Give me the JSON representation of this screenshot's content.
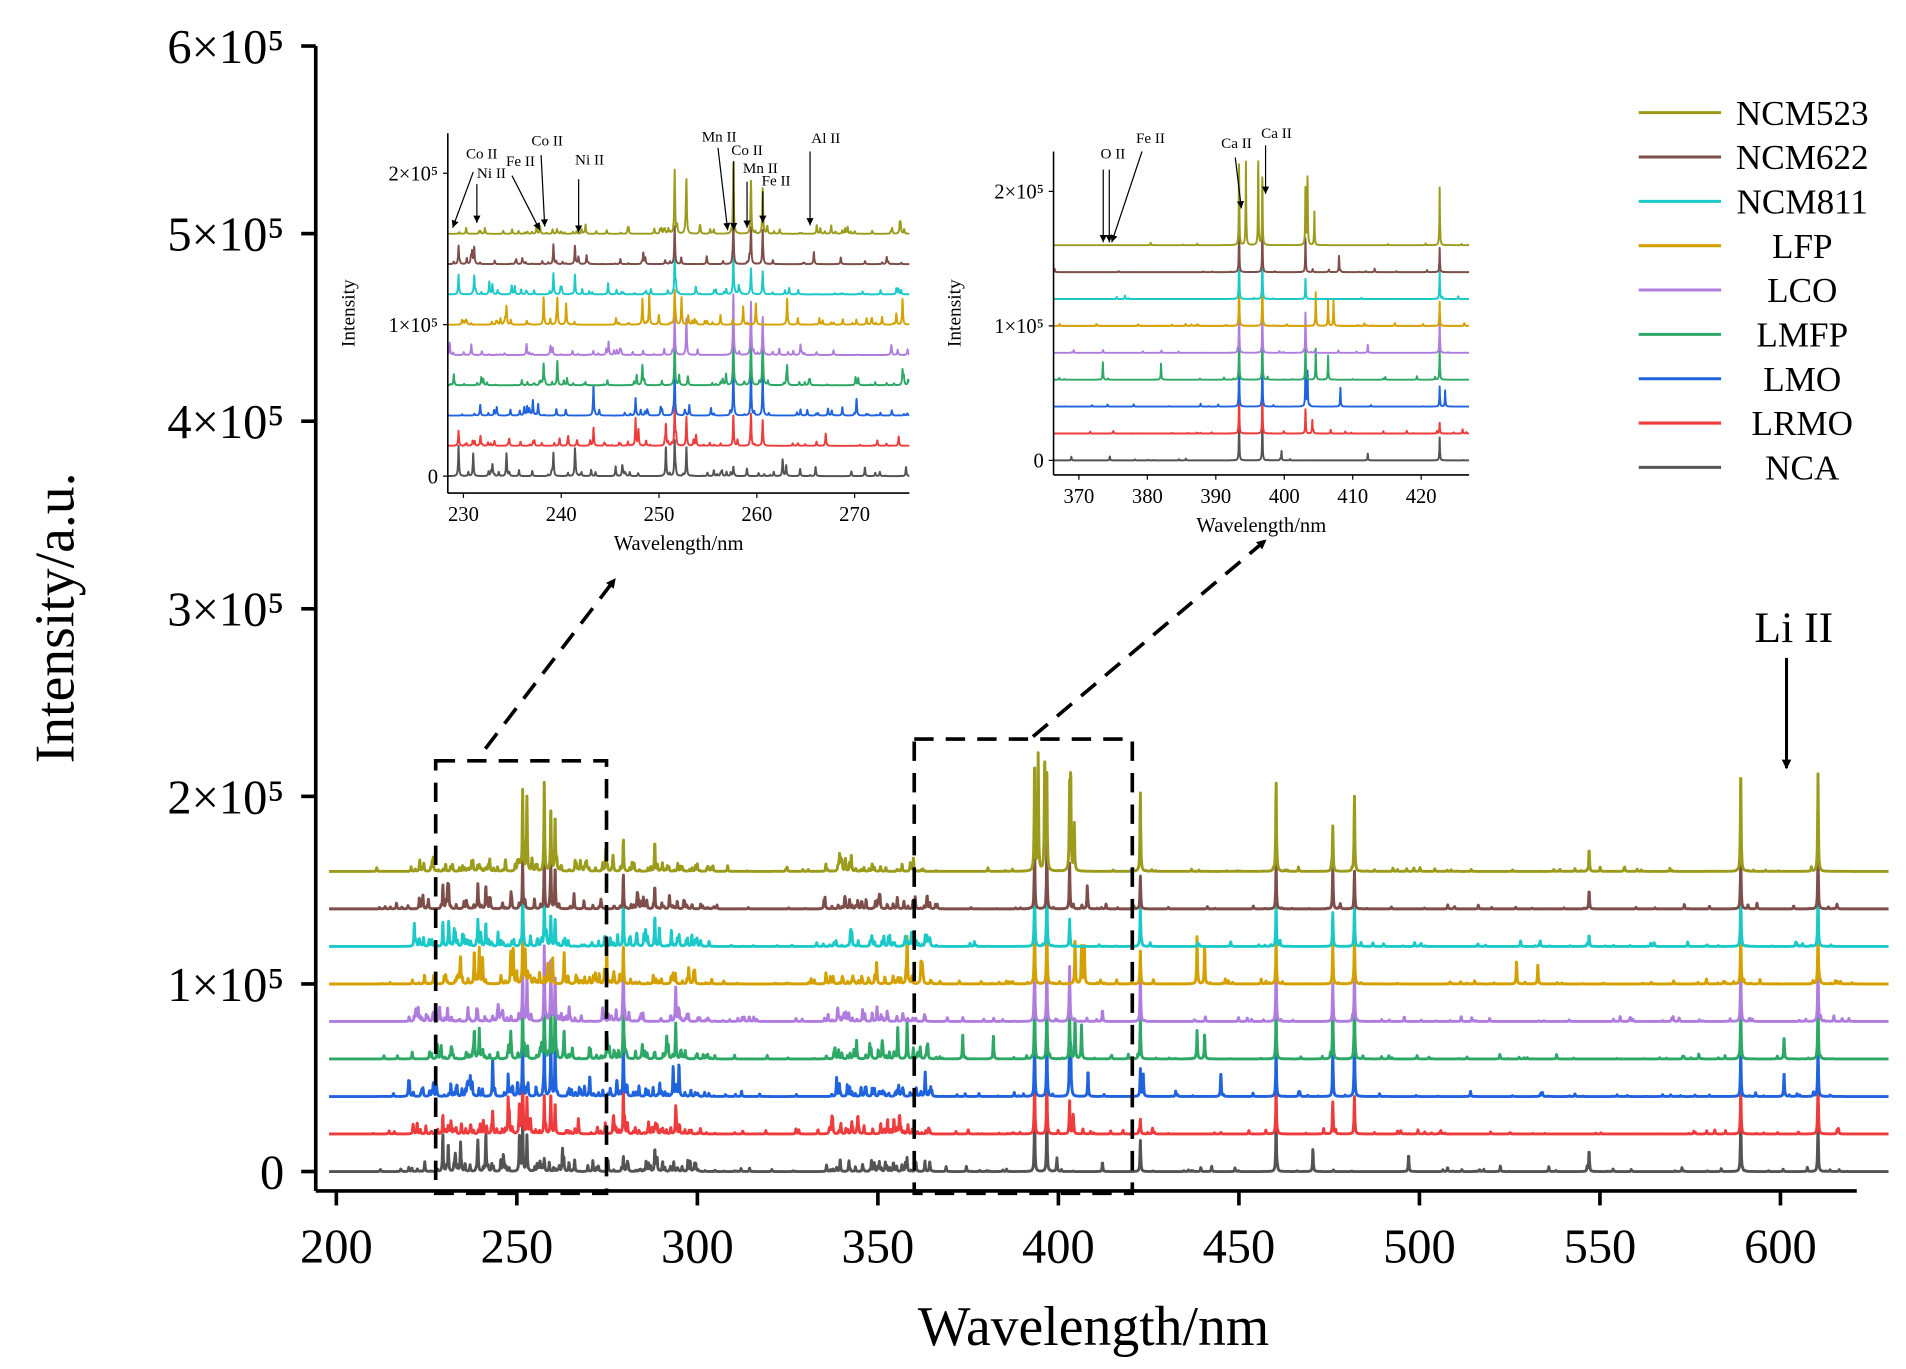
{
  "chart_data": {
    "type": "line",
    "xlabel": "Wavelength/nm",
    "ylabel": "Intensity/a.u.",
    "xlim": [
      198,
      630
    ],
    "ylim": [
      0,
      600000
    ],
    "xticks": [
      200,
      250,
      300,
      350,
      400,
      450,
      500,
      550,
      600
    ],
    "yticks": [
      {
        "v": 0,
        "label": "0"
      },
      {
        "v": 100000,
        "label": "1×10⁵"
      },
      {
        "v": 200000,
        "label": "2×10⁵"
      },
      {
        "v": 300000,
        "label": "3×10⁵"
      },
      {
        "v": 400000,
        "label": "4×10⁵"
      },
      {
        "v": 500000,
        "label": "5×10⁵"
      },
      {
        "v": 600000,
        "label": "6×10⁵"
      }
    ],
    "grid": false,
    "legend_position": "top-right",
    "annotation": {
      "label": "Li II",
      "wavelength": 610.4
    },
    "series": [
      {
        "name": "NCM523",
        "color": "#9b9b1c",
        "offset": 160000,
        "peaks": [
          [
            251.6,
            42000
          ],
          [
            252.8,
            32000
          ],
          [
            257.6,
            47000
          ],
          [
            259.4,
            35000
          ],
          [
            260.6,
            30000
          ],
          [
            279.5,
            17000
          ],
          [
            288.2,
            16000
          ],
          [
            393.4,
            60000
          ],
          [
            394.4,
            62000
          ],
          [
            396.2,
            62000
          ],
          [
            396.8,
            50000
          ],
          [
            403.1,
            42000
          ],
          [
            403.4,
            50000
          ],
          [
            404.4,
            25000
          ],
          [
            422.7,
            43000
          ],
          [
            460.3,
            48000
          ],
          [
            476,
            24000
          ],
          [
            482,
            40000
          ],
          [
            547,
            12000
          ],
          [
            589,
            55000
          ],
          [
            610.4,
            52000
          ]
        ]
      },
      {
        "name": "NCM622",
        "color": "#7e4e4a",
        "offset": 140000,
        "peaks": [
          [
            229.5,
            12000
          ],
          [
            231.1,
            11000
          ],
          [
            239.2,
            13000
          ],
          [
            241.4,
            12000
          ],
          [
            251.6,
            25000
          ],
          [
            257.6,
            28000
          ],
          [
            259.4,
            24000
          ],
          [
            260.6,
            22000
          ],
          [
            279.5,
            18000
          ],
          [
            288.2,
            12000
          ],
          [
            393.4,
            35000
          ],
          [
            396.8,
            35000
          ],
          [
            403.1,
            25000
          ],
          [
            408,
            12000
          ],
          [
            422.7,
            18000
          ],
          [
            460.3,
            24000
          ],
          [
            476,
            20000
          ],
          [
            482,
            20000
          ],
          [
            547,
            10000
          ],
          [
            589,
            30000
          ],
          [
            610.4,
            30000
          ]
        ]
      },
      {
        "name": "NCM811",
        "color": "#1cc9c9",
        "offset": 120000,
        "peaks": [
          [
            221.6,
            12000
          ],
          [
            229.5,
            13000
          ],
          [
            231.1,
            12000
          ],
          [
            239.2,
            14000
          ],
          [
            241.4,
            13000
          ],
          [
            251.6,
            25000
          ],
          [
            257.6,
            25000
          ],
          [
            259.4,
            17000
          ],
          [
            260.6,
            15000
          ],
          [
            279.5,
            25000
          ],
          [
            288.2,
            15000
          ],
          [
            393.4,
            35000
          ],
          [
            396.8,
            35000
          ],
          [
            403.1,
            15000
          ],
          [
            422.7,
            22000
          ],
          [
            460.3,
            22000
          ],
          [
            476,
            18000
          ],
          [
            482,
            22000
          ],
          [
            547,
            6000
          ],
          [
            589,
            30000
          ],
          [
            610.4,
            30000
          ]
        ]
      },
      {
        "name": "LFP",
        "color": "#d4a100",
        "offset": 100000,
        "peaks": [
          [
            234.4,
            12000
          ],
          [
            238.2,
            18000
          ],
          [
            239.6,
            17000
          ],
          [
            240.5,
            14000
          ],
          [
            248.3,
            17000
          ],
          [
            249,
            20000
          ],
          [
            251.6,
            22000
          ],
          [
            252.3,
            18000
          ],
          [
            258.6,
            12000
          ],
          [
            259.9,
            14000
          ],
          [
            263.1,
            17000
          ],
          [
            274.9,
            17000
          ],
          [
            279.5,
            20000
          ],
          [
            358.1,
            25000
          ],
          [
            393.4,
            35000
          ],
          [
            396.8,
            35000
          ],
          [
            404.6,
            25000
          ],
          [
            406.4,
            20000
          ],
          [
            407.2,
            20000
          ],
          [
            422.7,
            18000
          ],
          [
            438.4,
            25000
          ],
          [
            440.5,
            20000
          ],
          [
            460.3,
            23000
          ],
          [
            476,
            21000
          ],
          [
            482,
            25000
          ],
          [
            526.9,
            12000
          ],
          [
            532.8,
            10000
          ],
          [
            589,
            28000
          ],
          [
            610.4,
            30000
          ]
        ]
      },
      {
        "name": "LCO",
        "color": "#b07ddf",
        "offset": 80000,
        "peaks": [
          [
            228.6,
            8000
          ],
          [
            230.8,
            7000
          ],
          [
            238.9,
            6000
          ],
          [
            251.6,
            25000
          ],
          [
            252.8,
            24000
          ],
          [
            257.6,
            40000
          ],
          [
            259.4,
            35000
          ],
          [
            260.6,
            25000
          ],
          [
            279.5,
            30000
          ],
          [
            294,
            18000
          ],
          [
            393.4,
            30000
          ],
          [
            396.8,
            30000
          ],
          [
            403.1,
            30000
          ],
          [
            412.2,
            6000
          ],
          [
            422.7,
            25000
          ],
          [
            460.3,
            30000
          ],
          [
            476,
            20000
          ],
          [
            482,
            26000
          ],
          [
            589,
            30000
          ],
          [
            610.4,
            32000
          ]
        ]
      },
      {
        "name": "LMFP",
        "color": "#2ea866",
        "offset": 60000,
        "peaks": [
          [
            238.2,
            14000
          ],
          [
            239.6,
            16000
          ],
          [
            248.3,
            13000
          ],
          [
            251.6,
            30000
          ],
          [
            257.6,
            35000
          ],
          [
            259.4,
            33000
          ],
          [
            260.6,
            34000
          ],
          [
            263.1,
            12000
          ],
          [
            274.9,
            10000
          ],
          [
            279.5,
            35000
          ],
          [
            294,
            19000
          ],
          [
            344.1,
            10000
          ],
          [
            355.5,
            17000
          ],
          [
            358.1,
            20000
          ],
          [
            373.5,
            13000
          ],
          [
            382,
            12000
          ],
          [
            393.4,
            35000
          ],
          [
            396.8,
            35000
          ],
          [
            403.1,
            28000
          ],
          [
            404.6,
            23000
          ],
          [
            406.4,
            18000
          ],
          [
            422.7,
            22000
          ],
          [
            438.4,
            15000
          ],
          [
            440.5,
            13000
          ],
          [
            460.3,
            28000
          ],
          [
            476,
            28000
          ],
          [
            482,
            34000
          ],
          [
            589,
            30000
          ],
          [
            601,
            12000
          ],
          [
            610.4,
            32000
          ]
        ]
      },
      {
        "name": "LMO",
        "color": "#1f63df",
        "offset": 40000,
        "peaks": [
          [
            237.1,
            10000
          ],
          [
            243.3,
            14000
          ],
          [
            247.6,
            11000
          ],
          [
            251.6,
            28000
          ],
          [
            257.6,
            32000
          ],
          [
            259.4,
            30000
          ],
          [
            260.6,
            28000
          ],
          [
            270.2,
            11000
          ],
          [
            279.5,
            32000
          ],
          [
            293.3,
            16000
          ],
          [
            294.9,
            15000
          ],
          [
            393.4,
            35000
          ],
          [
            396.8,
            35000
          ],
          [
            403.1,
            30000
          ],
          [
            403.4,
            26000
          ],
          [
            408.2,
            14000
          ],
          [
            422.7,
            15000
          ],
          [
            423.5,
            12000
          ],
          [
            445,
            13000
          ],
          [
            460.3,
            25000
          ],
          [
            476,
            24000
          ],
          [
            482,
            34000
          ],
          [
            589,
            25000
          ],
          [
            601,
            13000
          ],
          [
            610.4,
            28000
          ]
        ]
      },
      {
        "name": "LRMO",
        "color": "#ef3b3b",
        "offset": 20000,
        "peaks": [
          [
            229.5,
            10000
          ],
          [
            243.3,
            12000
          ],
          [
            247.6,
            18000
          ],
          [
            250.7,
            14000
          ],
          [
            251.6,
            25000
          ],
          [
            252.8,
            19000
          ],
          [
            257.6,
            20000
          ],
          [
            259.4,
            21000
          ],
          [
            260.6,
            17000
          ],
          [
            279.5,
            22000
          ],
          [
            294,
            13000
          ],
          [
            393.4,
            30000
          ],
          [
            396.8,
            30000
          ],
          [
            403.1,
            18000
          ],
          [
            404.1,
            10000
          ],
          [
            422.7,
            8000
          ],
          [
            460.3,
            24000
          ],
          [
            476,
            17000
          ],
          [
            482,
            20000
          ],
          [
            589,
            25000
          ],
          [
            610.4,
            28000
          ]
        ]
      },
      {
        "name": "NCA",
        "color": "#545454",
        "offset": 0,
        "peaks": [
          [
            229.5,
            20000
          ],
          [
            231,
            15000
          ],
          [
            234.4,
            15000
          ],
          [
            239.2,
            15000
          ],
          [
            241.4,
            14000
          ],
          [
            250.7,
            19000
          ],
          [
            251.6,
            23000
          ],
          [
            252.8,
            19000
          ],
          [
            257.6,
            6000
          ],
          [
            263,
            7000
          ],
          [
            279.5,
            8000
          ],
          [
            288.2,
            12000
          ],
          [
            393.4,
            30000
          ],
          [
            396.8,
            30000
          ],
          [
            399.6,
            7000
          ],
          [
            412.2,
            5000
          ],
          [
            422.7,
            17000
          ],
          [
            460.3,
            26000
          ],
          [
            470.5,
            12000
          ],
          [
            497,
            9000
          ],
          [
            547,
            11000
          ],
          [
            589,
            30000
          ],
          [
            610.4,
            27000
          ]
        ]
      }
    ],
    "insets": [
      {
        "xlabel": "Wavelength/nm",
        "ylabel": "Intensity",
        "xlim": [
          228.4,
          275.6
        ],
        "xticks": [
          230,
          240,
          250,
          260,
          270
        ],
        "yticks": [
          {
            "v": 0,
            "label": "0"
          },
          {
            "v": 100000,
            "label": "1×10⁵"
          },
          {
            "v": 200000,
            "label": "2×10⁵"
          }
        ],
        "annotations": [
          "Co II",
          "Ni II",
          "Fe II",
          "Co II",
          "Ni II",
          "Mn II",
          "Co II",
          "Mn II",
          "Fe II",
          "Al II"
        ]
      },
      {
        "xlabel": "Wavelength/nm",
        "ylabel": "Intensity",
        "xlim": [
          366.3,
          427
        ],
        "xticks": [
          370,
          380,
          390,
          400,
          410,
          420
        ],
        "yticks": [
          {
            "v": 0,
            "label": "0"
          },
          {
            "v": 100000,
            "label": "1×10⁵"
          },
          {
            "v": 200000,
            "label": "2×10⁵"
          }
        ],
        "annotations": [
          "O II",
          "Fe II",
          "Ca II",
          "Ca II"
        ]
      }
    ]
  }
}
